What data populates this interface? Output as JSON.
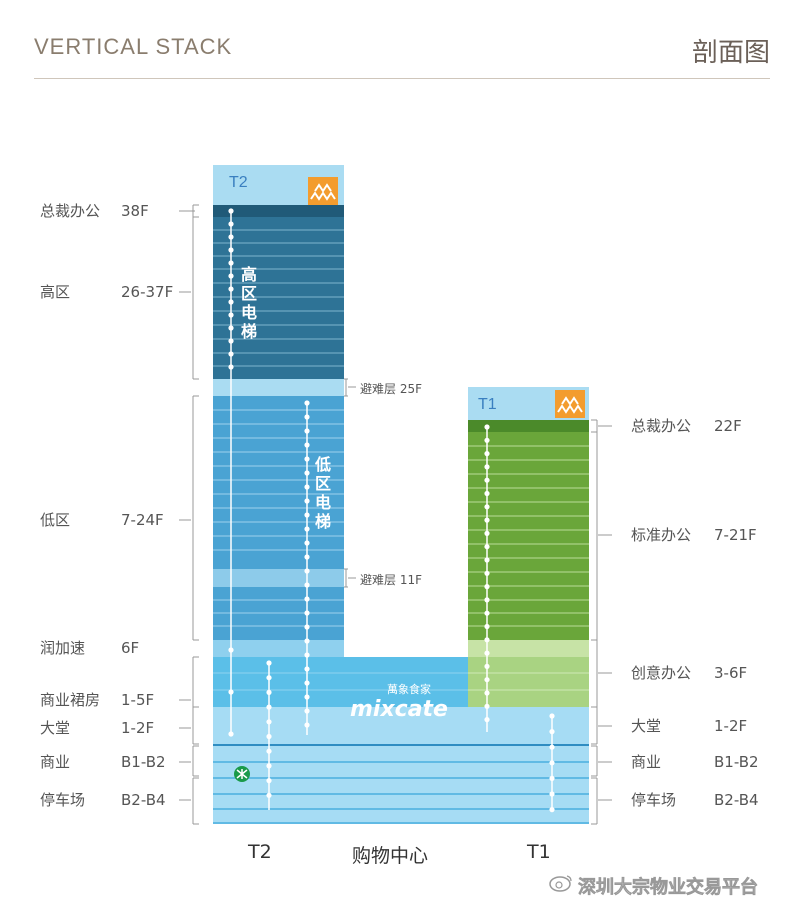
{
  "header": {
    "title": "VERTICAL STACK",
    "title_cn": "剖面图"
  },
  "towers": {
    "t2_tag": "T2",
    "t1_tag": "T1"
  },
  "left_labels": [
    {
      "name": "总裁办公",
      "floors": "38F"
    },
    {
      "name": "高区",
      "floors": "26-37F"
    },
    {
      "name": "低区",
      "floors": "7-24F"
    },
    {
      "name": "润加速",
      "floors": "6F"
    },
    {
      "name": "商业裙房",
      "floors": "1-5F"
    },
    {
      "name": "大堂",
      "floors": "1-2F"
    },
    {
      "name": "商业",
      "floors": "B1-B2"
    },
    {
      "name": "停车场",
      "floors": "B2-B4"
    }
  ],
  "right_labels": [
    {
      "name": "总裁办公",
      "floors": "22F"
    },
    {
      "name": "标准办公",
      "floors": "7-21F"
    },
    {
      "name": "创意办公",
      "floors": "3-6F"
    },
    {
      "name": "大堂",
      "floors": "1-2F"
    },
    {
      "name": "商业",
      "floors": "B1-B2"
    },
    {
      "name": "停车场",
      "floors": "B2-B4"
    }
  ],
  "refuge": {
    "upper": "避难层 25F",
    "lower": "避难层 11F"
  },
  "elevators": {
    "high": [
      "高",
      "区",
      "电",
      "梯"
    ],
    "low": [
      "低",
      "区",
      "电",
      "梯"
    ]
  },
  "mall": {
    "brand": "mixcate",
    "brand_cn": "萬象食家"
  },
  "bottom": {
    "t2": "T2",
    "mall": "购物中心",
    "t1": "T1"
  },
  "metro_icon": "metro-icon",
  "watermark": "深圳大宗物业交易平台",
  "colors": {
    "t2_high": "#2e7396",
    "t2_low": "#4aa3d3",
    "t2_top": "#aadcf2",
    "t1_green": "#6aa63a",
    "t1_creative": "#b5d98f",
    "podium": "#5bbfe8",
    "basement": "#a6dcf4",
    "logo": "#f39c2e"
  }
}
